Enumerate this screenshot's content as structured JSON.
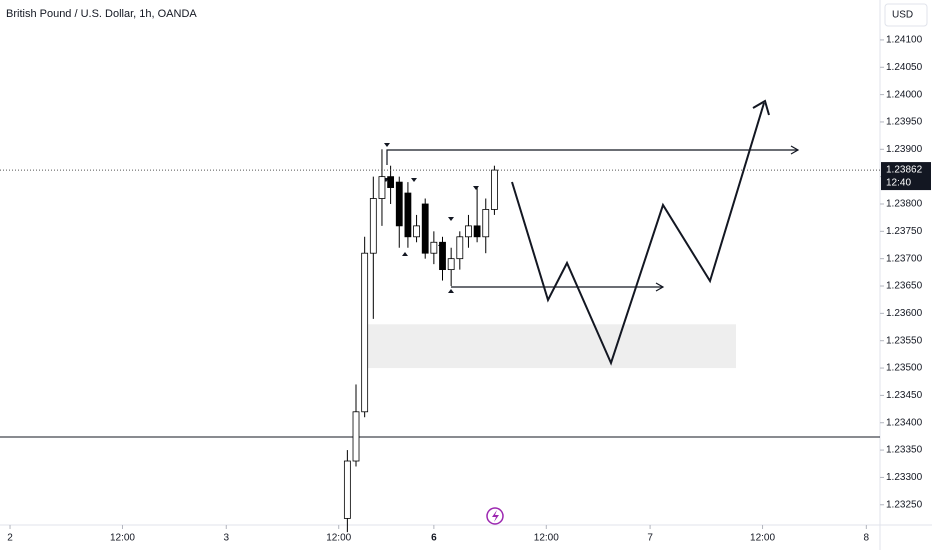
{
  "chart_data": {
    "type": "candlestick",
    "title": "British Pound / U.S. Dollar, 1h, OANDA",
    "currency": "USD",
    "x": [
      39,
      40,
      41,
      42,
      43,
      44,
      45,
      46,
      47,
      48,
      49,
      50,
      51,
      52,
      53,
      54,
      55,
      56
    ],
    "open": [
      1.23225,
      1.2333,
      1.2342,
      1.2371,
      1.2381,
      1.2385,
      1.2384,
      1.2382,
      1.2374,
      1.238,
      1.2371,
      1.2373,
      1.2368,
      1.237,
      1.2374,
      1.2376,
      1.2374,
      1.2379
    ],
    "high": [
      1.2335,
      1.2347,
      1.2374,
      1.2385,
      1.239,
      1.2387,
      1.2385,
      1.2384,
      1.2378,
      1.2381,
      1.2375,
      1.2374,
      1.2372,
      1.2375,
      1.2378,
      1.2383,
      1.2381,
      1.2387
    ],
    "low": [
      1.232,
      1.2332,
      1.2341,
      1.2359,
      1.2376,
      1.238,
      1.2372,
      1.2372,
      1.2373,
      1.237,
      1.2369,
      1.2366,
      1.2365,
      1.2368,
      1.2372,
      1.2373,
      1.2371,
      1.2378
    ],
    "close": [
      1.2333,
      1.2342,
      1.2371,
      1.2381,
      1.2385,
      1.2383,
      1.2376,
      1.2374,
      1.2376,
      1.2371,
      1.2373,
      1.2368,
      1.237,
      1.2374,
      1.2376,
      1.2374,
      1.2379,
      1.23862
    ],
    "up_color": "#ffffff",
    "down_color": "#000000",
    "last_price": 1.23862,
    "countdown": "12:40",
    "level": 1.23374,
    "zone": [
      1.235,
      1.2358
    ],
    "xlim": [
      -1.16,
      100.58
    ],
    "xticks": [
      {
        "value": 0,
        "label": "2"
      },
      {
        "value": 13,
        "label": "12:00"
      },
      {
        "value": 25,
        "label": "3"
      },
      {
        "value": 38,
        "label": "12:00"
      },
      {
        "value": 49,
        "label": "6"
      },
      {
        "value": 62,
        "label": "12:00"
      },
      {
        "value": 74,
        "label": "7"
      },
      {
        "value": 87,
        "label": "12:00"
      },
      {
        "value": 99,
        "label": "8"
      }
    ],
    "ylim": [
      1.23213,
      1.24173
    ],
    "yticks": [
      {
        "value": 1.241,
        "label": "1.24100"
      },
      {
        "value": 1.2405,
        "label": "1.24050"
      },
      {
        "value": 1.24,
        "label": "1.24000"
      },
      {
        "value": 1.2395,
        "label": "1.23950"
      },
      {
        "value": 1.239,
        "label": "1.23900"
      },
      {
        "value": 1.2385,
        "label": "1.23850"
      },
      {
        "value": 1.238,
        "label": "1.23800"
      },
      {
        "value": 1.2375,
        "label": "1.23750"
      },
      {
        "value": 1.237,
        "label": "1.23700"
      },
      {
        "value": 1.2365,
        "label": "1.23650"
      },
      {
        "value": 1.236,
        "label": "1.23600"
      },
      {
        "value": 1.2355,
        "label": "1.23550"
      },
      {
        "value": 1.235,
        "label": "1.23500"
      },
      {
        "value": 1.2345,
        "label": "1.23450"
      },
      {
        "value": 1.234,
        "label": "1.23400"
      },
      {
        "value": 1.2335,
        "label": "1.23350"
      },
      {
        "value": 1.233,
        "label": "1.23300"
      },
      {
        "value": 1.2325,
        "label": "1.23250"
      }
    ]
  }
}
